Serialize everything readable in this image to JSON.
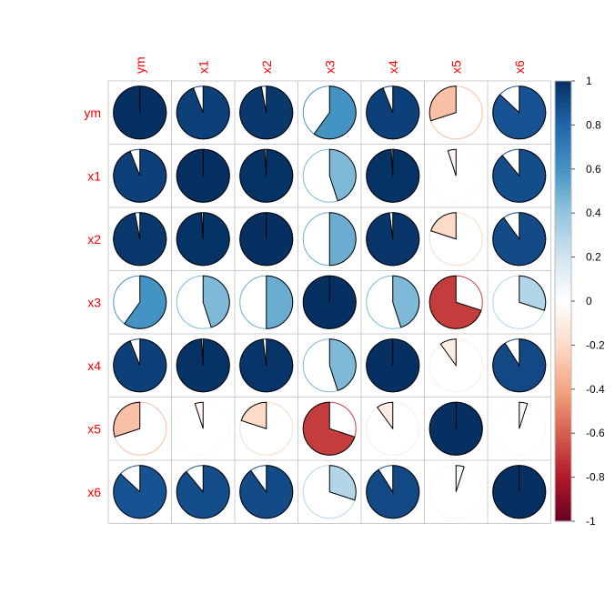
{
  "chart_data": {
    "type": "heatmap",
    "variables": [
      "ym",
      "x1",
      "x2",
      "x3",
      "x4",
      "x5",
      "x6"
    ],
    "matrix": [
      [
        1.0,
        0.94,
        0.97,
        0.6,
        0.94,
        -0.3,
        0.87
      ],
      [
        0.94,
        1.0,
        0.99,
        0.45,
        0.99,
        -0.05,
        0.89
      ],
      [
        0.97,
        0.99,
        1.0,
        0.5,
        0.98,
        -0.2,
        0.9
      ],
      [
        0.6,
        0.45,
        0.5,
        1.0,
        0.45,
        -0.7,
        0.3
      ],
      [
        0.94,
        0.99,
        0.98,
        0.45,
        1.0,
        -0.1,
        0.91
      ],
      [
        -0.3,
        -0.05,
        -0.2,
        -0.7,
        -0.1,
        1.0,
        0.05
      ],
      [
        0.87,
        0.89,
        0.9,
        0.3,
        0.91,
        0.05,
        1.0
      ]
    ],
    "colorbar": {
      "ticks": [
        "1",
        "0.8",
        "0.6",
        "0.4",
        "0.2",
        "0",
        "-0.2",
        "-0.4",
        "-0.6",
        "-0.8",
        "-1"
      ],
      "range": [
        -1,
        1
      ]
    },
    "label_color": "#ff0000",
    "grid": true,
    "method": "pie"
  }
}
